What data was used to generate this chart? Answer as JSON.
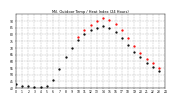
{
  "title": "Mil. Outdoor Temp / Heat Index (24 Hours)",
  "bg_color": "#ffffff",
  "plot_bg_color": "#ffffff",
  "grid_color": "#aaaaaa",
  "temp_color": "#000000",
  "heat_color": "#ff0000",
  "orange_color": "#ff8800",
  "ylim": [
    40,
    95
  ],
  "xlim": [
    0,
    24
  ],
  "xtick_labels": [
    "0",
    "1",
    "2",
    "3",
    "4",
    "5",
    "6",
    "7",
    "8",
    "9",
    "10",
    "11",
    "12",
    "13",
    "14",
    "15",
    "16",
    "17",
    "18",
    "19",
    "20",
    "21",
    "22",
    "23"
  ],
  "ytick_labels": [
    "40",
    "45",
    "50",
    "55",
    "60",
    "65",
    "70",
    "75",
    "80",
    "85",
    "90"
  ],
  "temp_x": [
    0,
    1,
    2,
    3,
    4,
    5,
    6,
    7,
    8,
    9,
    10,
    11,
    12,
    13,
    14,
    15,
    16,
    17,
    18,
    19,
    20,
    21,
    22,
    23
  ],
  "temp_y": [
    43,
    42,
    42,
    41,
    41,
    42,
    46,
    54,
    63,
    70,
    76,
    80,
    83,
    85,
    86,
    85,
    82,
    77,
    72,
    67,
    63,
    59,
    56,
    53
  ],
  "heat_x": [
    10,
    11,
    12,
    13,
    14,
    15,
    16,
    17,
    18,
    19,
    20,
    21,
    22,
    23
  ],
  "heat_y": [
    78,
    83,
    87,
    90,
    92,
    91,
    88,
    83,
    77,
    71,
    66,
    62,
    59,
    55
  ]
}
